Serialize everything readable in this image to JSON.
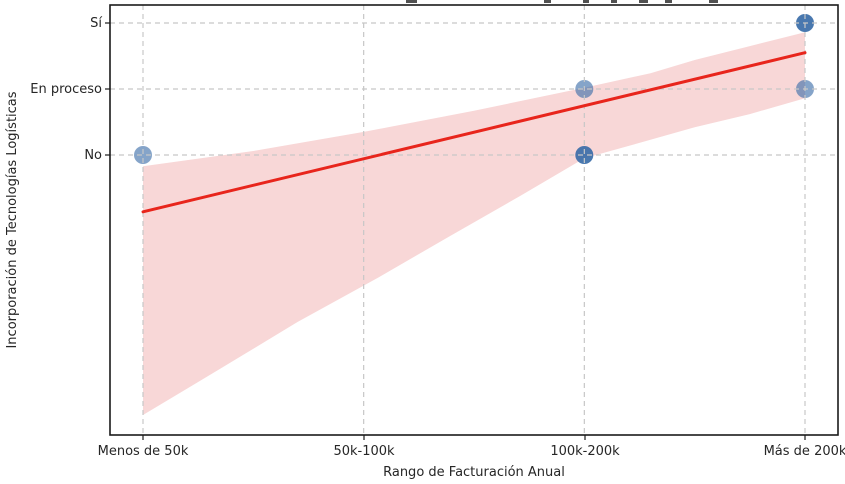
{
  "figure": {
    "background": "#ffffff",
    "title_clipped_offscreen": true
  },
  "chart_data": {
    "type": "scatter",
    "title": "",
    "xlabel": "Rango de Facturación Anual",
    "ylabel": "Incorporación de Tecnologías Logísticas",
    "x_categories": [
      "Menos de 50k",
      "50k-100k",
      "100k-200k",
      "Más de 200k"
    ],
    "y_categories": [
      "No",
      "En proceso",
      "Sí"
    ],
    "y_values_map": {
      "No": 0,
      "En proceso": 1,
      "Sí": 2
    },
    "grid": true,
    "xlim": [
      -0.15,
      3.15
    ],
    "ylim": [
      -4.24,
      2.27
    ],
    "points": [
      {
        "x": "Menos de 50k",
        "x_index": 0,
        "y": "No",
        "y_value": 0,
        "count": 1
      },
      {
        "x": "100k-200k",
        "x_index": 2,
        "y": "En proceso",
        "y_value": 1,
        "count": 1
      },
      {
        "x": "100k-200k",
        "x_index": 2,
        "y": "No",
        "y_value": 0,
        "count": 2
      },
      {
        "x": "Más de 200k",
        "x_index": 3,
        "y": "Sí",
        "y_value": 2,
        "count": 2
      },
      {
        "x": "Más de 200k",
        "x_index": 3,
        "y": "En proceso",
        "y_value": 1,
        "count": 1
      }
    ],
    "regression_line": {
      "x1": 0,
      "y1": -0.86,
      "x2": 3,
      "y2": 1.55
    },
    "confidence_band": {
      "upper": [
        [
          0,
          -0.17
        ],
        [
          0.5,
          0.06
        ],
        [
          1,
          0.35
        ],
        [
          1.5,
          0.67
        ],
        [
          2,
          1.02
        ],
        [
          2.3,
          1.24
        ],
        [
          2.5,
          1.44
        ],
        [
          2.75,
          1.65
        ],
        [
          3,
          1.86
        ]
      ],
      "lower": [
        [
          0,
          -3.94
        ],
        [
          0.35,
          -3.24
        ],
        [
          0.7,
          -2.53
        ],
        [
          1.07,
          -1.85
        ],
        [
          1.39,
          -1.23
        ],
        [
          1.71,
          -0.62
        ],
        [
          2,
          -0.05
        ],
        [
          2.3,
          0.23
        ],
        [
          2.5,
          0.42
        ],
        [
          2.75,
          0.62
        ],
        [
          3,
          0.86
        ]
      ]
    },
    "colors": {
      "point": "#3a6ca8",
      "line": "#e8251c",
      "band": "#f8d7d7",
      "grid": "#c7c7c7",
      "text": "#262626",
      "spine": "#1a1a1a"
    },
    "point_opacity_single": 0.62,
    "point_opacity_multi": 0.92,
    "point_radius": 9
  }
}
